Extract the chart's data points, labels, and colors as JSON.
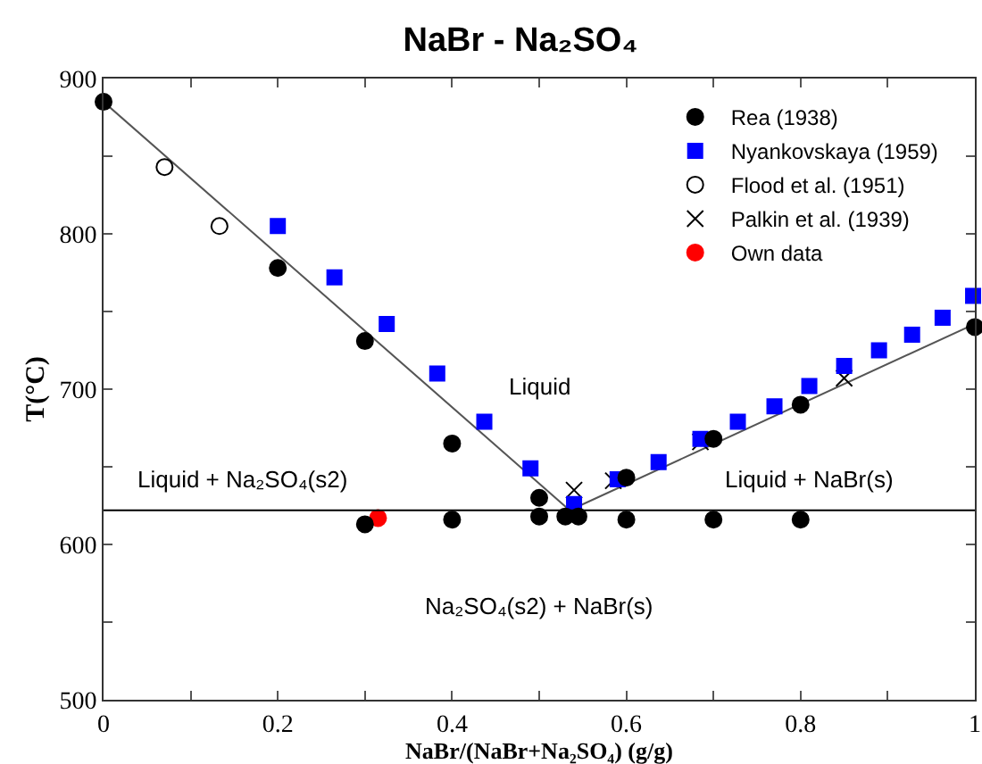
{
  "chart_data": {
    "type": "scatter",
    "title": "NaBr - Na₂SO₄",
    "xlabel": "NaBr/(NaBr+Na₂SO₄) (g/g)",
    "ylabel": "T(°C)",
    "xlim": [
      0,
      1
    ],
    "xticks": [
      0,
      {
        "value": 0.1,
        "label": null
      },
      0.2,
      {
        "value": 0.3,
        "label": null
      },
      0.4,
      {
        "value": 0.5,
        "label": null
      },
      0.6,
      {
        "value": 0.7,
        "label": null
      },
      0.8,
      {
        "value": 0.9,
        "label": null
      },
      1
    ],
    "ylim": [
      500,
      900
    ],
    "yticks": [
      500,
      {
        "value": 550,
        "label": null
      },
      600,
      {
        "value": 650,
        "label": null
      },
      700,
      {
        "value": 750,
        "label": null
      },
      800,
      {
        "value": 850,
        "label": null
      },
      900
    ],
    "grid": false,
    "legend": "top right",
    "series": [
      {
        "name": "Rea (1938)",
        "color": "#000000",
        "marker": "circle",
        "x": [
          0,
          0.2,
          0.3,
          0.4,
          0.5,
          0.6,
          0.7,
          0.8,
          1,
          0.3,
          0.4,
          0.5,
          0.53,
          0.545,
          0.6,
          0.7,
          0.8
        ],
        "values": [
          885,
          778,
          731,
          665,
          630,
          643,
          668,
          690,
          740,
          613,
          616,
          618,
          618,
          618,
          616,
          616,
          616
        ]
      },
      {
        "name": "Nyankovskaya (1959)",
        "color": "#0000ff",
        "marker": "square",
        "x": [
          0.2,
          0.265,
          0.325,
          0.383,
          0.437,
          0.49,
          0.54,
          0.59,
          0.637,
          0.685,
          0.728,
          0.77,
          0.81,
          0.85,
          0.89,
          0.928,
          0.963,
          0.998
        ],
        "values": [
          805,
          772,
          742,
          710,
          679,
          649,
          626,
          642,
          653,
          668,
          679,
          689,
          702,
          715,
          725,
          735,
          746,
          760
        ]
      },
      {
        "name": "Flood et al. (1951)",
        "color": "#000000",
        "marker": "circle-open",
        "x": [
          0.07,
          0.133
        ],
        "values": [
          843,
          805
        ]
      },
      {
        "name": "Palkin et al. (1939)",
        "color": "#000000",
        "marker": "cross",
        "x": [
          0.54,
          0.585,
          0.685,
          0.85
        ],
        "values": [
          635,
          641,
          666,
          707
        ]
      },
      {
        "name": "Own data",
        "color": "#ff0000",
        "marker": "circle",
        "x": [
          0.315
        ],
        "values": [
          617
        ]
      },
      {
        "type": "line",
        "color": "#555555",
        "marker": "none",
        "x": [
          0,
          0.535,
          1
        ],
        "values": [
          885,
          622,
          742
        ]
      }
    ],
    "ref_lines": [
      {
        "axis": "y",
        "value": 622,
        "color": "#000000"
      }
    ],
    "annotations": [
      "Liquid",
      "Liquid + Na₂SO₄(s2)",
      "Liquid + NaBr(s)",
      "Na₂SO₄(s2) + NaBr(s)"
    ]
  }
}
